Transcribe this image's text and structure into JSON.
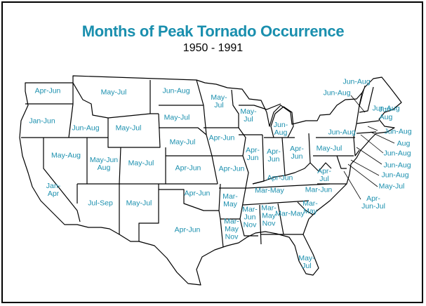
{
  "title": "Months of Peak Tornado Occurrence",
  "subtitle": "1950 - 1991",
  "colors": {
    "label": "#1a8fae",
    "border": "#000000"
  },
  "regions": [
    {
      "id": "wa",
      "label": "Apr-Jun"
    },
    {
      "id": "or",
      "label": "Jan-Jun"
    },
    {
      "id": "ca",
      "label": "Jan-\nApr"
    },
    {
      "id": "nv",
      "label": "May-Aug"
    },
    {
      "id": "id",
      "label": "Jun-Aug"
    },
    {
      "id": "mt",
      "label": "May-Jul"
    },
    {
      "id": "wy",
      "label": "May-Jul"
    },
    {
      "id": "ut",
      "label": "May-Jun\nAug"
    },
    {
      "id": "az",
      "label": "Jul-Sep"
    },
    {
      "id": "co",
      "label": "May-Jul"
    },
    {
      "id": "nm",
      "label": "May-Jul"
    },
    {
      "id": "nd",
      "label": "Jun-Aug"
    },
    {
      "id": "sd",
      "label": "May-Jul"
    },
    {
      "id": "ne",
      "label": "May-Jul"
    },
    {
      "id": "ks",
      "label": "Apr-Jun"
    },
    {
      "id": "ok",
      "label": "Apr-Jun"
    },
    {
      "id": "tx",
      "label": "Apr-Jun"
    },
    {
      "id": "mn",
      "label": "May-\nJul"
    },
    {
      "id": "ia",
      "label": "Apr-Jun"
    },
    {
      "id": "mo",
      "label": "Apr-Jun"
    },
    {
      "id": "ar",
      "label": "Mar-\nMay"
    },
    {
      "id": "la",
      "label": "Mar-\nMay\nNov"
    },
    {
      "id": "wi",
      "label": "May-\nJul"
    },
    {
      "id": "il",
      "label": "Apr-\nJun"
    },
    {
      "id": "mi",
      "label": "Jun-\nAug"
    },
    {
      "id": "in",
      "label": "Apr-\nJun"
    },
    {
      "id": "oh",
      "label": "Apr-\nJun"
    },
    {
      "id": "ky",
      "label": "Apr-Jun"
    },
    {
      "id": "tn",
      "label": "Mar-May"
    },
    {
      "id": "ms",
      "label": "Mar-\nJun\nNov"
    },
    {
      "id": "al",
      "label": "Mar-\nMay\nNov"
    },
    {
      "id": "ga",
      "label": "Mar-May"
    },
    {
      "id": "fl",
      "label": "May-\nJul"
    },
    {
      "id": "sc",
      "label": "Mar-\nMay"
    },
    {
      "id": "nc",
      "label": "Mar-Jun"
    },
    {
      "id": "va",
      "label": "Apr-\nJul"
    },
    {
      "id": "wv",
      "label": "May-Jul"
    },
    {
      "id": "pa",
      "label": "Jun-Aug"
    },
    {
      "id": "ny",
      "label": "Jun-Aug"
    },
    {
      "id": "vt",
      "label": "Jun-Aug"
    },
    {
      "id": "nh",
      "label": "Jun-Aug"
    },
    {
      "id": "me",
      "label": "Jun-\nAug"
    },
    {
      "id": "ma",
      "label": "Jun-Aug"
    },
    {
      "id": "ri",
      "label": "Aug"
    },
    {
      "id": "ct",
      "label": "Jun-Aug"
    },
    {
      "id": "nj",
      "label": "Jun-Aug"
    },
    {
      "id": "de",
      "label": "Jun-Aug"
    },
    {
      "id": "md",
      "label": "May-Jul"
    },
    {
      "id": "dc",
      "label": "Apr-\nJun-Jul"
    }
  ]
}
